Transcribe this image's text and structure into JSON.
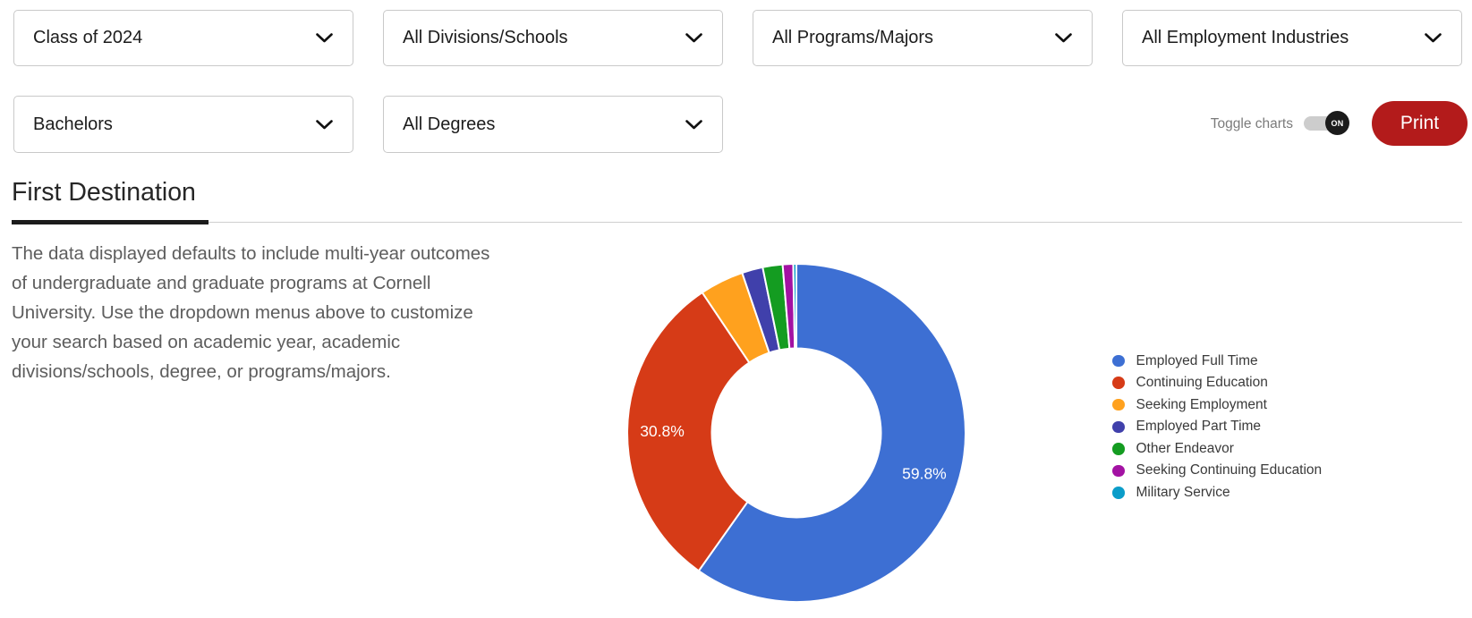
{
  "filters": {
    "row1": [
      {
        "value": "Class of 2024"
      },
      {
        "value": "All Divisions/Schools"
      },
      {
        "value": "All Programs/Majors"
      },
      {
        "value": "All Employment Industries"
      }
    ],
    "row2": [
      {
        "value": "Bachelors"
      },
      {
        "value": "All Degrees"
      }
    ]
  },
  "toolbar": {
    "toggle_label": "Toggle charts",
    "toggle_state": "ON",
    "print_label": "Print"
  },
  "section": {
    "title": "First Destination",
    "description": "The data displayed defaults to include multi-year outcomes of undergraduate and graduate programs at Cornell University. Use the dropdown menus above to customize your search based on academic year, academic divisions/schools, degree, or programs/majors."
  },
  "chart_data": {
    "type": "pie",
    "donut": true,
    "legend_position": "right",
    "start_angle": 0,
    "series": [
      {
        "name": "Employed Full Time",
        "value": 59.8,
        "color": "#3D6FD3",
        "data_label": "59.8%"
      },
      {
        "name": "Continuing Education",
        "value": 30.8,
        "color": "#D63B17",
        "data_label": "30.8%"
      },
      {
        "name": "Seeking Employment",
        "value": 4.2,
        "color": "#FFA11E",
        "data_label": ""
      },
      {
        "name": "Employed Part Time",
        "value": 2.0,
        "color": "#4040AB",
        "data_label": ""
      },
      {
        "name": "Other Endeavor",
        "value": 1.9,
        "color": "#149C21",
        "data_label": ""
      },
      {
        "name": "Seeking Continuing Education",
        "value": 1.0,
        "color": "#A312A3",
        "data_label": ""
      },
      {
        "name": "Military Service",
        "value": 0.3,
        "color": "#0B9DC9",
        "data_label": ""
      }
    ]
  },
  "colors": {
    "accent_red": "#b31b1b",
    "toggle_knob": "#1b1b1b",
    "toggle_track": "#cdcdcd"
  }
}
